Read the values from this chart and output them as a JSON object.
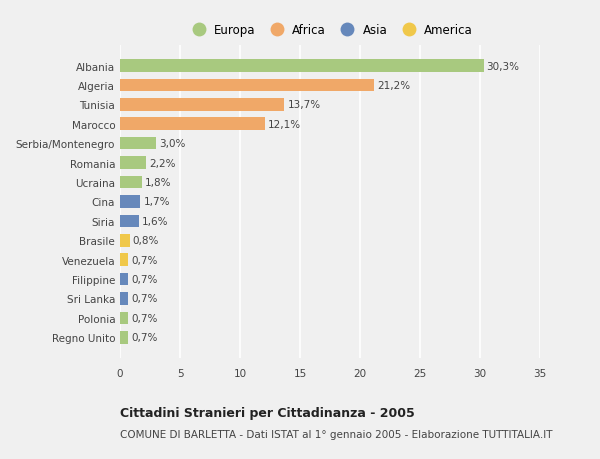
{
  "countries": [
    "Albania",
    "Algeria",
    "Tunisia",
    "Marocco",
    "Serbia/Montenegro",
    "Romania",
    "Ucraina",
    "Cina",
    "Siria",
    "Brasile",
    "Venezuela",
    "Filippine",
    "Sri Lanka",
    "Polonia",
    "Regno Unito"
  ],
  "values": [
    30.3,
    21.2,
    13.7,
    12.1,
    3.0,
    2.2,
    1.8,
    1.7,
    1.6,
    0.8,
    0.7,
    0.7,
    0.7,
    0.7,
    0.7
  ],
  "labels": [
    "30,3%",
    "21,2%",
    "13,7%",
    "12,1%",
    "3,0%",
    "2,2%",
    "1,8%",
    "1,7%",
    "1,6%",
    "0,8%",
    "0,7%",
    "0,7%",
    "0,7%",
    "0,7%",
    "0,7%"
  ],
  "continents": [
    "Europa",
    "Africa",
    "Africa",
    "Africa",
    "Europa",
    "Europa",
    "Europa",
    "Asia",
    "Asia",
    "America",
    "America",
    "Asia",
    "Asia",
    "Europa",
    "Europa"
  ],
  "continent_colors": {
    "Europa": "#a8c97f",
    "Africa": "#f0a868",
    "Asia": "#6688bb",
    "America": "#f0c84a"
  },
  "legend_order": [
    "Europa",
    "Africa",
    "Asia",
    "America"
  ],
  "title": "Cittadini Stranieri per Cittadinanza - 2005",
  "subtitle": "COMUNE DI BARLETTA - Dati ISTAT al 1° gennaio 2005 - Elaborazione TUTTITALIA.IT",
  "xlim": [
    0,
    35
  ],
  "xticks": [
    0,
    5,
    10,
    15,
    20,
    25,
    30,
    35
  ],
  "background_color": "#f0f0f0",
  "grid_color": "#ffffff"
}
